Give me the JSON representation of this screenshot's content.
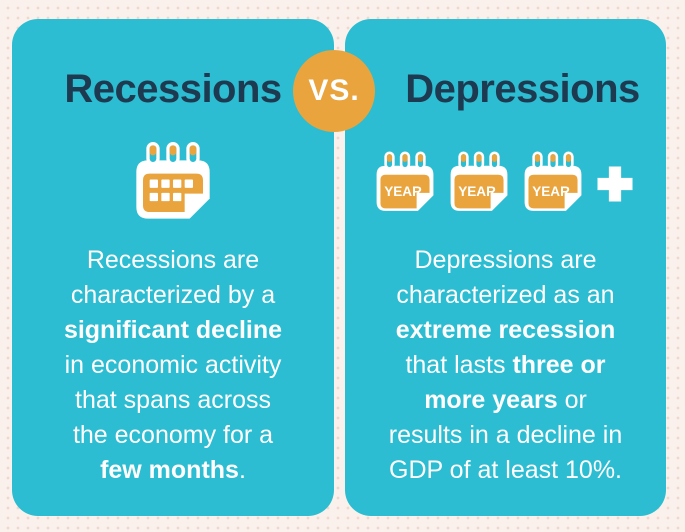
{
  "colors": {
    "teal": "#2cbdd2",
    "orange": "#e9a43d",
    "navy": "#1e3a50",
    "cream_background": "#faf1ec",
    "dot_pattern": "#efd9ce",
    "text_white": "#ffffff"
  },
  "vs_badge": {
    "label": "VS."
  },
  "left_panel": {
    "title": "Recessions",
    "icon": "calendar-month-icon",
    "description_lines": [
      [
        {
          "t": "Recessions are",
          "b": false
        }
      ],
      [
        {
          "t": "characterized by a",
          "b": false
        }
      ],
      [
        {
          "t": "significant decline",
          "b": true
        }
      ],
      [
        {
          "t": "in economic activity",
          "b": false
        }
      ],
      [
        {
          "t": "that spans across",
          "b": false
        }
      ],
      [
        {
          "t": "the economy for a",
          "b": false
        }
      ],
      [
        {
          "t": "few months",
          "b": true
        },
        {
          "t": ".",
          "b": false
        }
      ]
    ]
  },
  "right_panel": {
    "title": "Depressions",
    "calendar_label": "YEAR",
    "calendar_count": 3,
    "plus_icon": "plus-icon",
    "description_lines": [
      [
        {
          "t": "Depressions are",
          "b": false
        }
      ],
      [
        {
          "t": "characterized as an",
          "b": false
        }
      ],
      [
        {
          "t": "extreme recession",
          "b": true
        }
      ],
      [
        {
          "t": "that lasts ",
          "b": false
        },
        {
          "t": "three or",
          "b": true
        }
      ],
      [
        {
          "t": "more years",
          "b": true
        },
        {
          "t": " or",
          "b": false
        }
      ],
      [
        {
          "t": "results in a decline in",
          "b": false
        }
      ],
      [
        {
          "t": "GDP of at least 10%.",
          "b": false
        }
      ]
    ]
  }
}
